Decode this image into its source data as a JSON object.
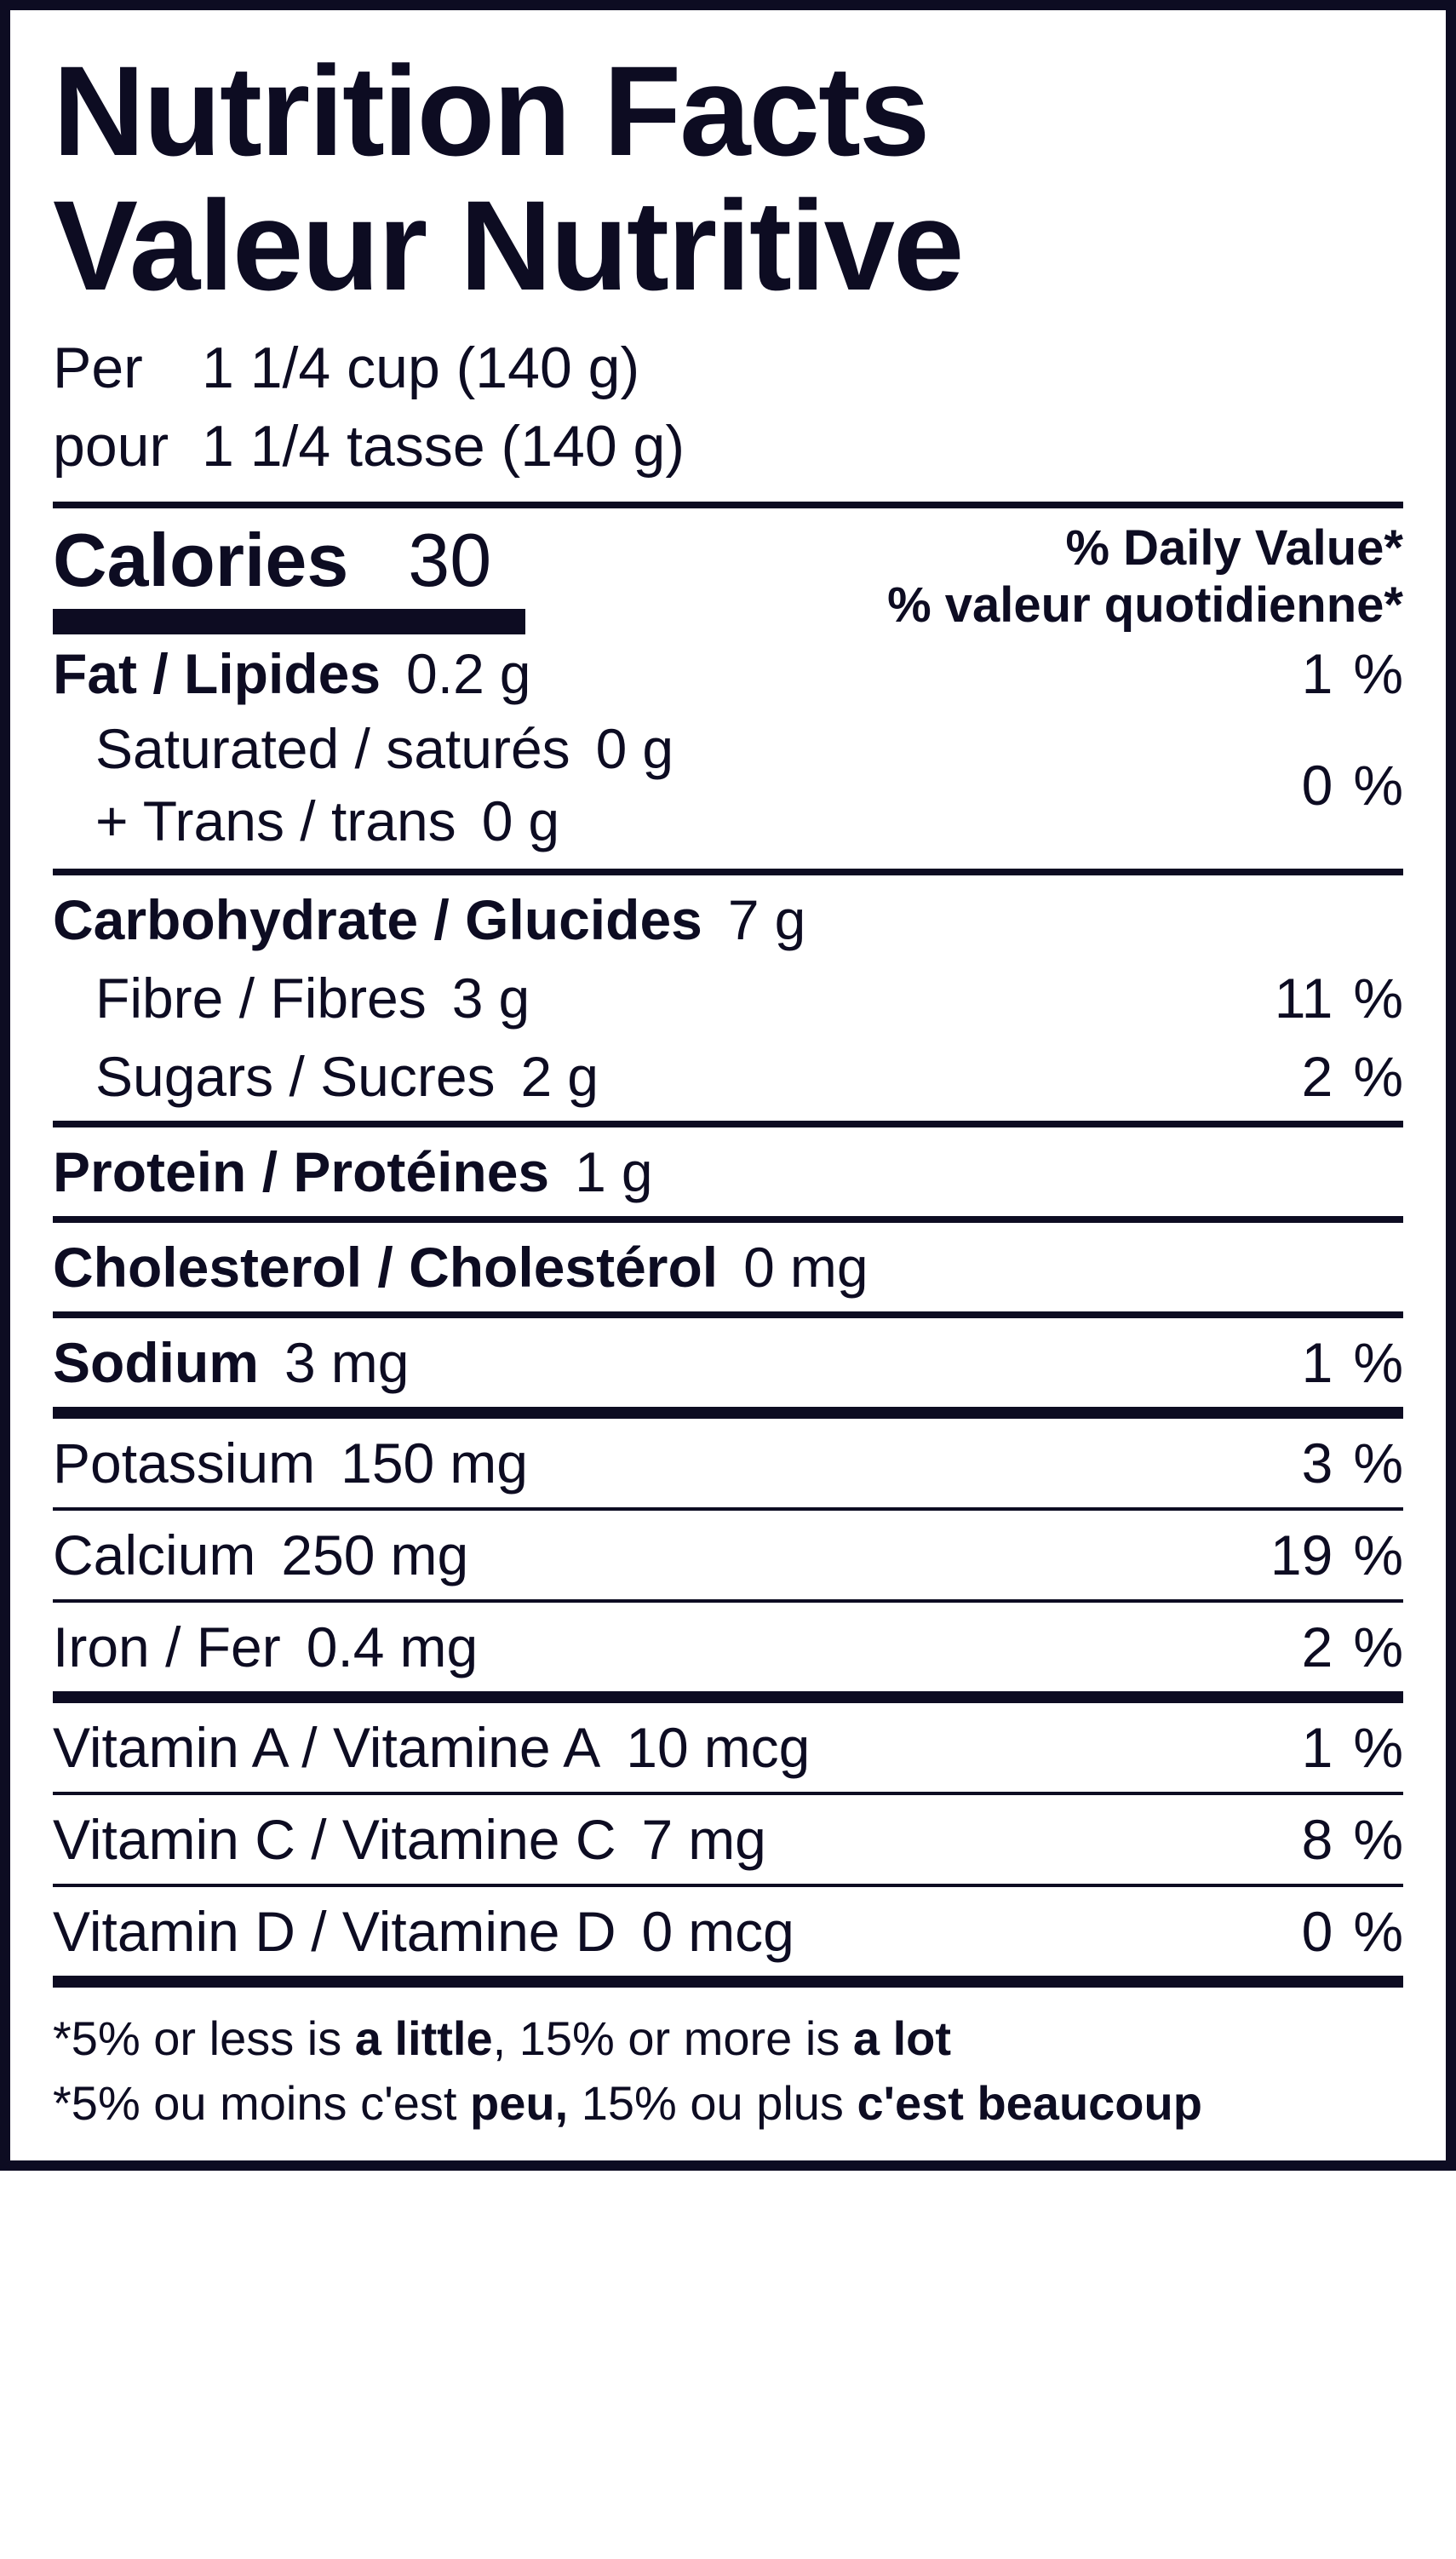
{
  "colors": {
    "ink": "#0d0c22",
    "bg": "#ffffff"
  },
  "title": {
    "en": "Nutrition Facts",
    "fr": "Valeur Nutritive"
  },
  "serving": {
    "per_label": "Per",
    "pour_label": "pour",
    "en": "1 1/4 cup (140 g)",
    "fr": "1 1/4 tasse (140 g)"
  },
  "calories": {
    "label": "Calories",
    "value": "30"
  },
  "dv_header": {
    "en": "% Daily Value*",
    "fr": "% valeur quotidienne*"
  },
  "nutrients": {
    "fat": {
      "name": "Fat / Lipides",
      "amount": "0.2",
      "unit": "g",
      "dv": "1"
    },
    "saturated": {
      "name": "Saturated / saturés",
      "amount": "0",
      "unit": "g"
    },
    "trans": {
      "name": "+ Trans / trans",
      "amount": "0",
      "unit": "g"
    },
    "sat_trans_dv": "0",
    "carb": {
      "name": "Carbohydrate / Glucides",
      "amount": "7",
      "unit": "g"
    },
    "fibre": {
      "name": "Fibre / Fibres",
      "amount": "3",
      "unit": "g",
      "dv": "11"
    },
    "sugars": {
      "name": "Sugars / Sucres",
      "amount": "2",
      "unit": "g",
      "dv": "2"
    },
    "protein": {
      "name": "Protein / Protéines",
      "amount": "1",
      "unit": "g"
    },
    "cholesterol": {
      "name": "Cholesterol / Cholestérol",
      "amount": "0",
      "unit": "mg"
    },
    "sodium": {
      "name": "Sodium",
      "amount": "3",
      "unit": "mg",
      "dv": "1"
    },
    "potassium": {
      "name": "Potassium",
      "amount": "150",
      "unit": "mg",
      "dv": "3"
    },
    "calcium": {
      "name": "Calcium",
      "amount": "250",
      "unit": "mg",
      "dv": "19"
    },
    "iron": {
      "name": "Iron / Fer",
      "amount": "0.4",
      "unit": "mg",
      "dv": "2"
    },
    "vit_a": {
      "name": "Vitamin A / Vitamine A",
      "amount": "10",
      "unit": "mcg",
      "dv": "1"
    },
    "vit_c": {
      "name": "Vitamin C / Vitamine C",
      "amount": "7",
      "unit": "mg",
      "dv": "8"
    },
    "vit_d": {
      "name": "Vitamin D / Vitamine D",
      "amount": "0",
      "unit": "mcg",
      "dv": "0"
    }
  },
  "footnote": {
    "en_pre": "*5% or less is ",
    "en_b1": "a little",
    "en_mid": ", 15% or more is ",
    "en_b2": "a lot",
    "fr_pre": "*5% ou moins c'est ",
    "fr_b1": "peu,",
    "fr_mid": " 15% ou plus ",
    "fr_b2": "c'est beaucoup"
  },
  "percent_sign": "%"
}
